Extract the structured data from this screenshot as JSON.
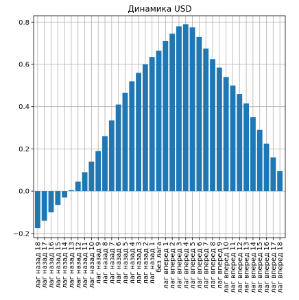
{
  "chart_data": {
    "type": "bar",
    "title": "Динамика USD",
    "xlabel": "",
    "ylabel": "",
    "ylim": [
      -0.22,
      0.83
    ],
    "yticks": [
      -0.2,
      0.0,
      0.2,
      0.4,
      0.6,
      0.8
    ],
    "ytick_labels": [
      "−0.2",
      "0.0",
      "0.2",
      "0.4",
      "0.6",
      "0.8"
    ],
    "grid": true,
    "color": "#1f77b4",
    "categories": [
      "лаг назад 18",
      "лаг назад 17",
      "лаг назад 16",
      "лаг назад 15",
      "лаг назад 14",
      "лаг назад 13",
      "лаг назад 12",
      "лаг назад 11",
      "лаг назад 10",
      "лаг назад 9",
      "лаг назад 8",
      "лаг назад 7",
      "лаг назад 6",
      "лаг назад 5",
      "лаг назад 4",
      "лаг назад 3",
      "лаг назад 2",
      "лаг назад 1",
      "без лага",
      "лаг вперед 1",
      "лаг вперед 2",
      "лаг вперед 3",
      "лаг вперед 4",
      "лаг вперед 5",
      "лаг вперед 6",
      "лаг вперед 7",
      "лаг вперед 8",
      "лаг вперед 9",
      "лаг вперед 10",
      "лаг вперед 11",
      "лаг вперед 12",
      "лаг вперед 13",
      "лаг вперед 14",
      "лаг вперед 15",
      "лаг вперед 16",
      "лаг вперед 17",
      "лаг вперед 18"
    ],
    "values": [
      -0.175,
      -0.14,
      -0.1,
      -0.065,
      -0.03,
      0.005,
      0.045,
      0.09,
      0.14,
      0.19,
      0.26,
      0.335,
      0.41,
      0.465,
      0.52,
      0.56,
      0.6,
      0.635,
      0.665,
      0.71,
      0.745,
      0.78,
      0.79,
      0.775,
      0.73,
      0.675,
      0.625,
      0.585,
      0.54,
      0.5,
      0.46,
      0.415,
      0.35,
      0.29,
      0.225,
      0.16,
      0.095
    ]
  }
}
